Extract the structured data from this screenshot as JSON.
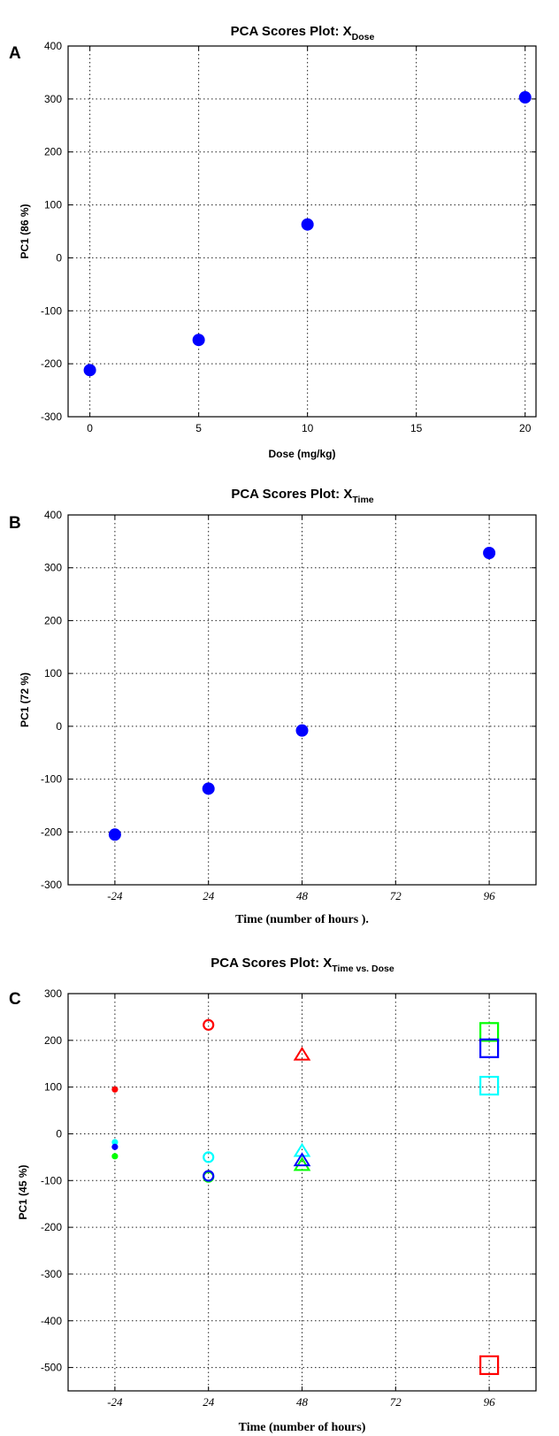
{
  "chart_data": [
    {
      "panel": "A",
      "type": "scatter",
      "title_main": "PCA Scores Plot: X",
      "title_sub": "Dose",
      "xlabel": "Dose (mg/kg)",
      "ylabel": "PC1 (86 %)",
      "xlim": [
        -1,
        20.5
      ],
      "ylim": [
        -300,
        400
      ],
      "xticks": [
        0,
        5,
        10,
        15,
        20
      ],
      "xtick_labels": [
        "0",
        "5",
        "10",
        "15",
        "20"
      ],
      "yticks": [
        -300,
        -200,
        -100,
        0,
        100,
        200,
        300,
        400
      ],
      "grid": true,
      "points": [
        {
          "x": 0,
          "y": -212,
          "color": "#0000ff",
          "marker": "filled-circle"
        },
        {
          "x": 5,
          "y": -155,
          "color": "#0000ff",
          "marker": "filled-circle"
        },
        {
          "x": 10,
          "y": 63,
          "color": "#0000ff",
          "marker": "filled-circle"
        },
        {
          "x": 20,
          "y": 303,
          "color": "#0000ff",
          "marker": "filled-circle"
        }
      ]
    },
    {
      "panel": "B",
      "type": "scatter",
      "title_main": "PCA Scores Plot: X",
      "title_sub": "Time",
      "xlabel": "Time (number of hours ).",
      "ylabel": "PC1 (72 %)",
      "xlim": [
        -0.5,
        4.5
      ],
      "ylim": [
        -300,
        400
      ],
      "xticks": [
        0,
        1,
        2,
        3,
        4
      ],
      "xtick_labels": [
        "-24",
        "24",
        "48",
        "72",
        "96"
      ],
      "yticks": [
        -300,
        -200,
        -100,
        0,
        100,
        200,
        300,
        400
      ],
      "grid": true,
      "points": [
        {
          "x": 0,
          "y": -205,
          "color": "#0000ff",
          "marker": "filled-circle"
        },
        {
          "x": 1,
          "y": -118,
          "color": "#0000ff",
          "marker": "filled-circle"
        },
        {
          "x": 2,
          "y": -8,
          "color": "#0000ff",
          "marker": "filled-circle"
        },
        {
          "x": 4,
          "y": 328,
          "color": "#0000ff",
          "marker": "filled-circle"
        }
      ]
    },
    {
      "panel": "C",
      "type": "scatter",
      "title_main": "PCA Scores Plot: X",
      "title_sub": "Time vs. Dose",
      "xlabel": "Time (number of hours)",
      "ylabel": "PC1 (45 %)",
      "xlim": [
        -0.5,
        4.5
      ],
      "ylim": [
        -550,
        300
      ],
      "xticks": [
        0,
        1,
        2,
        3,
        4
      ],
      "xtick_labels": [
        "-24",
        "24",
        "48",
        "72",
        "96"
      ],
      "yticks": [
        -500,
        -400,
        -300,
        -200,
        -100,
        0,
        100,
        200,
        300
      ],
      "grid": true,
      "points": [
        {
          "x": 0,
          "y": 95,
          "color": "#ff0000",
          "marker": "dot"
        },
        {
          "x": 0,
          "y": -18,
          "color": "#00ffff",
          "marker": "dot"
        },
        {
          "x": 0,
          "y": -28,
          "color": "#0000ff",
          "marker": "dot"
        },
        {
          "x": 0,
          "y": -48,
          "color": "#00ff00",
          "marker": "dot"
        },
        {
          "x": 1,
          "y": 233,
          "color": "#ff0000",
          "marker": "circle"
        },
        {
          "x": 1,
          "y": -50,
          "color": "#00ffff",
          "marker": "circle"
        },
        {
          "x": 1,
          "y": -92,
          "color": "#00ff00",
          "marker": "circle"
        },
        {
          "x": 1,
          "y": -90,
          "color": "#0000ff",
          "marker": "circle"
        },
        {
          "x": 2,
          "y": 168,
          "color": "#ff0000",
          "marker": "triangle"
        },
        {
          "x": 2,
          "y": -38,
          "color": "#00ffff",
          "marker": "triangle"
        },
        {
          "x": 2,
          "y": -68,
          "color": "#00ff00",
          "marker": "triangle"
        },
        {
          "x": 2,
          "y": -58,
          "color": "#0000ff",
          "marker": "triangle"
        },
        {
          "x": 4,
          "y": 218,
          "color": "#00ff00",
          "marker": "square"
        },
        {
          "x": 4,
          "y": 183,
          "color": "#0000ff",
          "marker": "square"
        },
        {
          "x": 4,
          "y": 103,
          "color": "#00ffff",
          "marker": "square"
        },
        {
          "x": 4,
          "y": -495,
          "color": "#ff0000",
          "marker": "square"
        }
      ]
    }
  ]
}
